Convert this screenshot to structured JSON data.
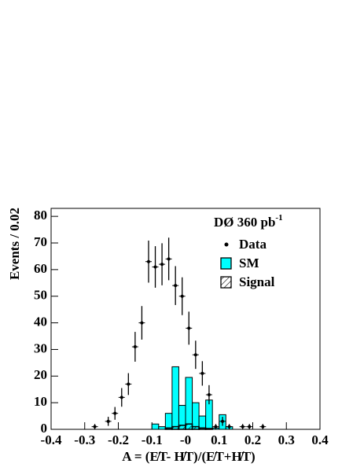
{
  "chart_data": {
    "type": "histogram",
    "xlabel": "A = (E̸T- H̸T)/(E̸T+H̸T)",
    "ylabel": "Events / 0.02",
    "annotation": "DØ 360 pb",
    "annotation_superscript": "-1",
    "bins": [
      -0.4,
      -0.38,
      -0.36,
      -0.34,
      -0.32,
      -0.3,
      -0.28,
      -0.26,
      -0.24,
      -0.22,
      -0.2,
      -0.18,
      -0.16,
      -0.14,
      -0.12,
      -0.1,
      -0.08,
      -0.06,
      -0.04,
      -0.02,
      0,
      0.02,
      0.04,
      0.06,
      0.08,
      0.1,
      0.12,
      0.14,
      0.16,
      0.18,
      0.2,
      0.22,
      0.24,
      0.26,
      0.28,
      0.3,
      0.32,
      0.34,
      0.36,
      0.38,
      0.4
    ],
    "series": [
      {
        "name": "SM",
        "color": "#00ffff",
        "values": [
          0,
          0,
          0,
          0,
          0,
          0,
          0,
          0,
          0,
          0,
          0,
          0,
          0,
          0,
          0,
          2,
          1,
          6,
          23.5,
          9,
          19.5,
          10,
          5,
          11,
          0.5,
          5.5,
          1,
          0,
          0,
          0,
          0,
          0,
          0,
          0,
          0,
          0,
          0,
          0,
          0,
          0
        ]
      },
      {
        "name": "Signal",
        "color": "#000000",
        "hatched": true,
        "values": [
          0,
          0,
          0,
          0,
          0,
          0,
          0,
          0,
          0,
          0,
          0,
          0,
          0,
          0,
          0,
          0,
          0,
          0.5,
          1,
          1.5,
          2,
          1,
          0.5,
          0.3,
          0,
          0,
          0,
          0,
          0,
          0,
          0,
          0,
          0,
          0,
          0,
          0,
          0,
          0,
          0,
          0
        ]
      }
    ],
    "points": {
      "name": "Data",
      "color": "#000000",
      "x": [
        -0.27,
        -0.23,
        -0.21,
        -0.19,
        -0.17,
        -0.15,
        -0.13,
        -0.11,
        -0.09,
        -0.07,
        -0.05,
        -0.03,
        -0.01,
        0.01,
        0.03,
        0.05,
        0.07,
        0.09,
        0.11,
        0.13,
        0.17,
        0.19,
        0.23
      ],
      "values": [
        1,
        3,
        6,
        12,
        17,
        31,
        40,
        63,
        61,
        62,
        64,
        54,
        50,
        38,
        28,
        21,
        13,
        1,
        3,
        1,
        1,
        1,
        1
      ],
      "errors": [
        1,
        1.7,
        2.4,
        3.5,
        4.1,
        5.6,
        6.3,
        7.9,
        7.8,
        7.9,
        8,
        7.3,
        7.1,
        6.2,
        5.3,
        4.6,
        3.6,
        1,
        1.7,
        1,
        1,
        1,
        1
      ]
    },
    "xlim": [
      -0.4,
      0.4
    ],
    "ylim": [
      0,
      83
    ],
    "xticks": [
      -0.4,
      -0.3,
      -0.2,
      -0.1,
      {
        "value": 0,
        "label": "-0"
      },
      0.1,
      0.2,
      0.3,
      0.4
    ],
    "yticks": [
      0,
      10,
      20,
      30,
      40,
      50,
      60,
      70,
      80
    ]
  }
}
